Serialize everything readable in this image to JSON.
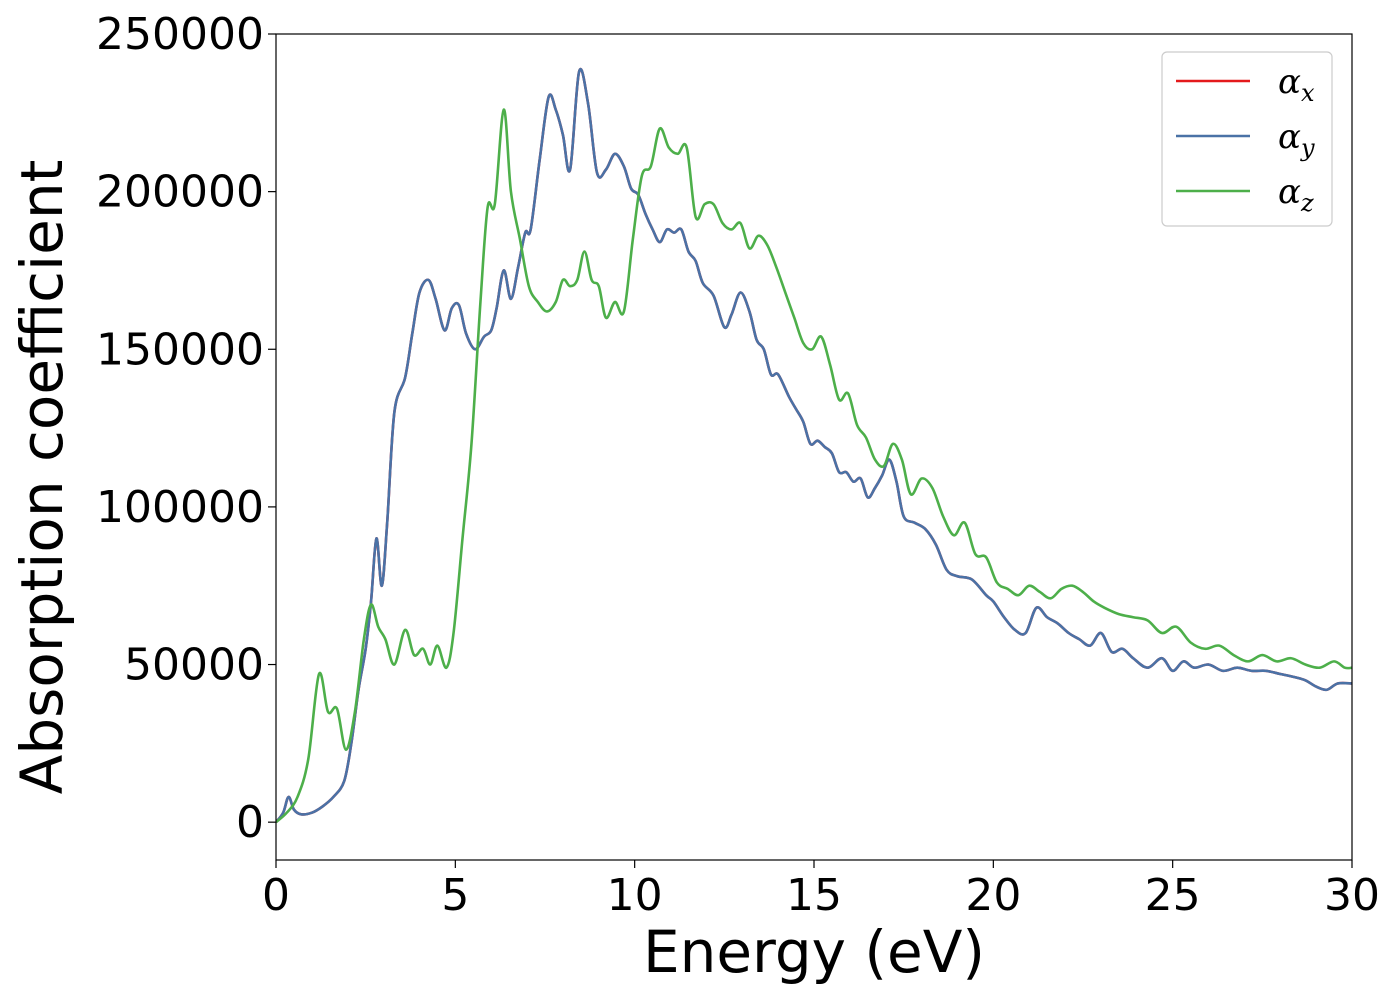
{
  "chart_data": {
    "type": "line",
    "title": "",
    "xlabel": "Energy (eV)",
    "ylabel": "Absorption coefficient",
    "xlim": [
      0,
      30
    ],
    "ylim": [
      -12000,
      250000
    ],
    "xticks": [
      0,
      5,
      10,
      15,
      20,
      25,
      30
    ],
    "xtick_labels": [
      "0",
      "5",
      "10",
      "15",
      "20",
      "25",
      "30"
    ],
    "yticks": [
      0,
      50000,
      100000,
      150000,
      200000,
      250000
    ],
    "ytick_labels": [
      "0",
      "50000",
      "100000",
      "150000",
      "200000",
      "250000"
    ],
    "grid": false,
    "legend_position": "top-right",
    "series": [
      {
        "name": "α_x",
        "legend_symbol": "α",
        "legend_sub": "x",
        "color": "#e41a1c",
        "x": [
          0,
          0.2,
          0.35,
          0.5,
          0.7,
          1.0,
          1.3,
          1.6,
          1.9,
          2.1,
          2.3,
          2.5,
          2.65,
          2.8,
          2.95,
          3.1,
          3.3,
          3.6,
          3.8,
          4.0,
          4.25,
          4.45,
          4.7,
          4.9,
          5.1,
          5.3,
          5.55,
          5.8,
          6.0,
          6.15,
          6.35,
          6.55,
          6.75,
          6.95,
          7.1,
          7.35,
          7.6,
          7.8,
          8.0,
          8.2,
          8.45,
          8.7,
          8.95,
          9.2,
          9.45,
          9.7,
          9.9,
          10.1,
          10.3,
          10.5,
          10.7,
          10.9,
          11.1,
          11.3,
          11.5,
          11.7,
          11.9,
          12.2,
          12.5,
          12.7,
          12.95,
          13.2,
          13.4,
          13.6,
          13.8,
          14.0,
          14.3,
          14.5,
          14.7,
          14.9,
          15.1,
          15.3,
          15.5,
          15.7,
          15.9,
          16.1,
          16.3,
          16.5,
          16.7,
          16.9,
          17.1,
          17.3,
          17.5,
          17.8,
          18.1,
          18.4,
          18.7,
          19.0,
          19.4,
          19.8,
          20.0,
          20.3,
          20.6,
          20.9,
          21.2,
          21.5,
          21.8,
          22.1,
          22.4,
          22.7,
          23.0,
          23.3,
          23.6,
          23.9,
          24.3,
          24.7,
          25.0,
          25.3,
          25.6,
          26.0,
          26.4,
          26.8,
          27.2,
          27.6,
          28.0,
          28.4,
          28.7,
          29.0,
          29.3,
          29.6,
          30.0
        ],
        "y": [
          0,
          3000,
          8000,
          4000,
          2500,
          3000,
          5000,
          8000,
          13000,
          25000,
          42000,
          55000,
          70000,
          90000,
          75000,
          95000,
          130000,
          141000,
          155000,
          168000,
          172000,
          166000,
          156000,
          163000,
          164000,
          155000,
          150000,
          154000,
          156000,
          163000,
          175000,
          166000,
          176000,
          187000,
          188000,
          210000,
          230000,
          226000,
          218000,
          207000,
          238000,
          228000,
          206000,
          207000,
          212000,
          208000,
          201000,
          199000,
          193000,
          188000,
          184000,
          188000,
          187000,
          188000,
          181000,
          178000,
          171000,
          167000,
          157000,
          161000,
          168000,
          162000,
          153000,
          150000,
          142000,
          142000,
          135000,
          131000,
          127000,
          120000,
          121000,
          119000,
          117000,
          111000,
          111000,
          108000,
          109000,
          103000,
          106000,
          110000,
          115000,
          108000,
          97000,
          95000,
          93000,
          88000,
          80000,
          78000,
          77000,
          72000,
          70000,
          65000,
          61000,
          60000,
          68000,
          65000,
          63000,
          60000,
          58000,
          56000,
          60000,
          54000,
          55000,
          52000,
          49000,
          52000,
          48000,
          51000,
          49000,
          50000,
          48000,
          49000,
          48000,
          48000,
          47000,
          46000,
          45000,
          43000,
          42000,
          44000,
          44000
        ]
      },
      {
        "name": "α_y",
        "legend_symbol": "α",
        "legend_sub": "y",
        "color": "#4a72a6",
        "x": [
          0,
          0.2,
          0.35,
          0.5,
          0.7,
          1.0,
          1.3,
          1.6,
          1.9,
          2.1,
          2.3,
          2.5,
          2.65,
          2.8,
          2.95,
          3.1,
          3.3,
          3.6,
          3.8,
          4.0,
          4.25,
          4.45,
          4.7,
          4.9,
          5.1,
          5.3,
          5.55,
          5.8,
          6.0,
          6.15,
          6.35,
          6.55,
          6.75,
          6.95,
          7.1,
          7.35,
          7.6,
          7.8,
          8.0,
          8.2,
          8.45,
          8.7,
          8.95,
          9.2,
          9.45,
          9.7,
          9.9,
          10.1,
          10.3,
          10.5,
          10.7,
          10.9,
          11.1,
          11.3,
          11.5,
          11.7,
          11.9,
          12.2,
          12.5,
          12.7,
          12.95,
          13.2,
          13.4,
          13.6,
          13.8,
          14.0,
          14.3,
          14.5,
          14.7,
          14.9,
          15.1,
          15.3,
          15.5,
          15.7,
          15.9,
          16.1,
          16.3,
          16.5,
          16.7,
          16.9,
          17.1,
          17.3,
          17.5,
          17.8,
          18.1,
          18.4,
          18.7,
          19.0,
          19.4,
          19.8,
          20.0,
          20.3,
          20.6,
          20.9,
          21.2,
          21.5,
          21.8,
          22.1,
          22.4,
          22.7,
          23.0,
          23.3,
          23.6,
          23.9,
          24.3,
          24.7,
          25.0,
          25.3,
          25.6,
          26.0,
          26.4,
          26.8,
          27.2,
          27.6,
          28.0,
          28.4,
          28.7,
          29.0,
          29.3,
          29.6,
          30.0
        ],
        "y": [
          0,
          3000,
          8000,
          4000,
          2500,
          3000,
          5000,
          8000,
          13000,
          25000,
          42000,
          55000,
          70000,
          90000,
          75000,
          95000,
          130000,
          141000,
          155000,
          168000,
          172000,
          166000,
          156000,
          163000,
          164000,
          155000,
          150000,
          154000,
          156000,
          163000,
          175000,
          166000,
          176000,
          187000,
          188000,
          210000,
          230000,
          226000,
          218000,
          207000,
          238000,
          228000,
          206000,
          207000,
          212000,
          208000,
          201000,
          199000,
          193000,
          188000,
          184000,
          188000,
          187000,
          188000,
          181000,
          178000,
          171000,
          167000,
          157000,
          161000,
          168000,
          162000,
          153000,
          150000,
          142000,
          142000,
          135000,
          131000,
          127000,
          120000,
          121000,
          119000,
          117000,
          111000,
          111000,
          108000,
          109000,
          103000,
          106000,
          110000,
          115000,
          108000,
          97000,
          95000,
          93000,
          88000,
          80000,
          78000,
          77000,
          72000,
          70000,
          65000,
          61000,
          60000,
          68000,
          65000,
          63000,
          60000,
          58000,
          56000,
          60000,
          54000,
          55000,
          52000,
          49000,
          52000,
          48000,
          51000,
          49000,
          50000,
          48000,
          49000,
          48000,
          48000,
          47000,
          46000,
          45000,
          43000,
          42000,
          44000,
          44000
        ]
      },
      {
        "name": "α_z",
        "legend_symbol": "α",
        "legend_sub": "z",
        "color": "#4daf4a",
        "x": [
          0,
          0.3,
          0.6,
          0.9,
          1.2,
          1.45,
          1.7,
          1.95,
          2.2,
          2.45,
          2.65,
          2.85,
          3.05,
          3.3,
          3.6,
          3.85,
          4.1,
          4.3,
          4.5,
          4.75,
          4.95,
          5.2,
          5.45,
          5.7,
          5.9,
          6.1,
          6.35,
          6.55,
          6.8,
          7.05,
          7.3,
          7.55,
          7.8,
          8.0,
          8.2,
          8.4,
          8.6,
          8.8,
          9.0,
          9.2,
          9.45,
          9.7,
          9.95,
          10.2,
          10.45,
          10.7,
          10.95,
          11.2,
          11.45,
          11.7,
          11.95,
          12.2,
          12.45,
          12.7,
          12.95,
          13.2,
          13.45,
          13.7,
          13.95,
          14.2,
          14.45,
          14.7,
          14.95,
          15.2,
          15.45,
          15.7,
          15.95,
          16.2,
          16.45,
          16.7,
          16.95,
          17.2,
          17.45,
          17.7,
          18.0,
          18.3,
          18.6,
          18.9,
          19.2,
          19.5,
          19.8,
          20.1,
          20.4,
          20.7,
          21.0,
          21.3,
          21.6,
          21.9,
          22.2,
          22.5,
          22.8,
          23.1,
          23.5,
          23.9,
          24.3,
          24.7,
          25.1,
          25.5,
          25.9,
          26.3,
          26.7,
          27.1,
          27.5,
          27.9,
          28.3,
          28.7,
          29.1,
          29.5,
          29.8,
          30.0
        ],
        "y": [
          0,
          3000,
          8000,
          20000,
          47000,
          35000,
          36000,
          23000,
          35000,
          58000,
          69000,
          62000,
          58000,
          50000,
          61000,
          53000,
          55000,
          50000,
          56000,
          49000,
          60000,
          90000,
          120000,
          165000,
          195000,
          196000,
          226000,
          200000,
          185000,
          170000,
          165000,
          162000,
          165000,
          172000,
          170000,
          172000,
          181000,
          172000,
          170000,
          160000,
          165000,
          162000,
          185000,
          205000,
          208000,
          220000,
          214000,
          212000,
          214000,
          192000,
          196000,
          196000,
          190000,
          188000,
          190000,
          182000,
          186000,
          183000,
          176000,
          168000,
          160000,
          152000,
          150000,
          154000,
          145000,
          134000,
          136000,
          126000,
          122000,
          115000,
          113000,
          120000,
          115000,
          104000,
          109000,
          106000,
          97000,
          91000,
          95000,
          85000,
          84000,
          76000,
          74000,
          72000,
          75000,
          73000,
          71000,
          74000,
          75000,
          73000,
          70000,
          68000,
          66000,
          65000,
          64000,
          60000,
          62000,
          57000,
          55000,
          56000,
          53000,
          51000,
          53000,
          51000,
          52000,
          50000,
          49000,
          51000,
          49000,
          49000
        ]
      }
    ]
  }
}
